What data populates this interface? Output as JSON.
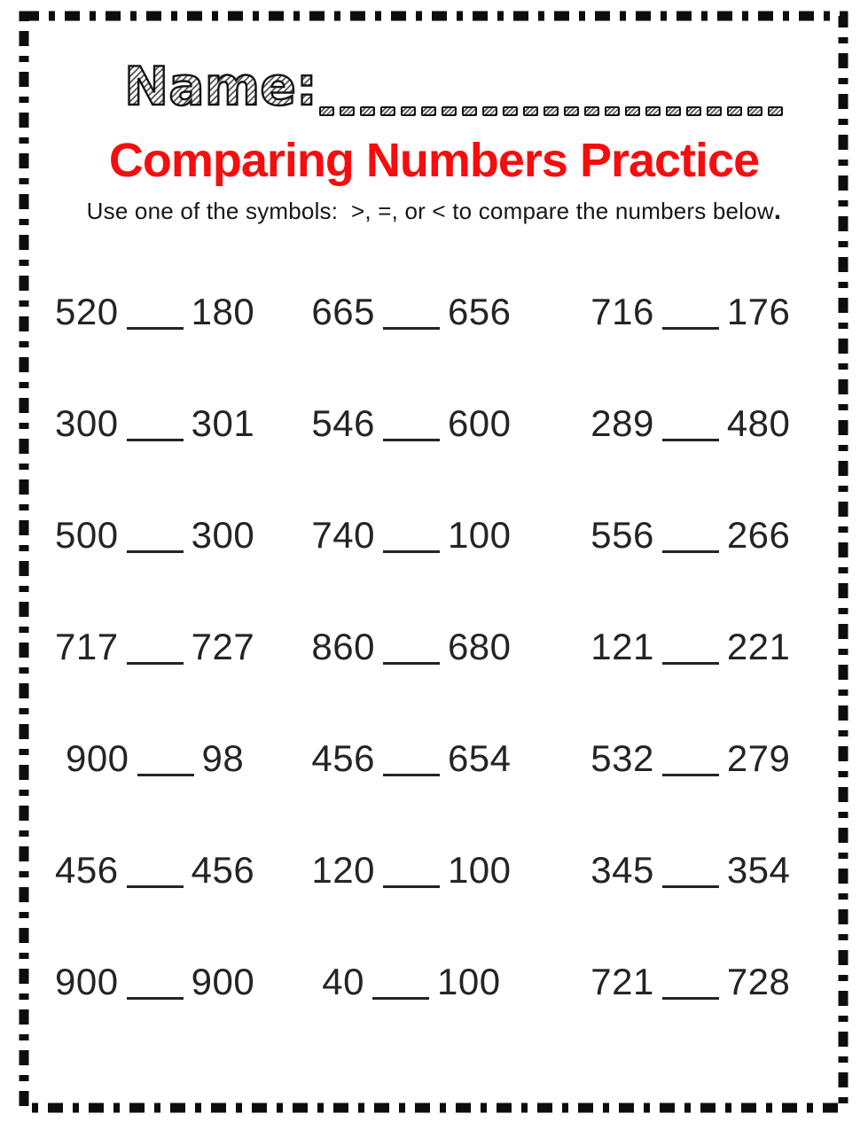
{
  "page": {
    "name_label": "Name:",
    "name_blank_dash_count": 23,
    "title": "Comparing Numbers Practice",
    "title_color": "#f60d0d",
    "instruction": "Use one of the symbols:  >, =, or < to compare the numbers below",
    "instruction_period": ".",
    "border_color": "#0d0d0d"
  },
  "problems": {
    "columns": 3,
    "rows": [
      [
        {
          "left": "520",
          "right": "180"
        },
        {
          "left": "665",
          "right": "656"
        },
        {
          "left": "716",
          "right": "176"
        }
      ],
      [
        {
          "left": "300",
          "right": "301"
        },
        {
          "left": "546",
          "right": "600"
        },
        {
          "left": "289",
          "right": "480"
        }
      ],
      [
        {
          "left": "500",
          "right": "300"
        },
        {
          "left": "740",
          "right": "100"
        },
        {
          "left": "556",
          "right": "266"
        }
      ],
      [
        {
          "left": "717",
          "right": "727"
        },
        {
          "left": "860",
          "right": "680"
        },
        {
          "left": "121",
          "right": "221"
        }
      ],
      [
        {
          "left": "900",
          "right": "98"
        },
        {
          "left": "456",
          "right": "654"
        },
        {
          "left": "532",
          "right": "279"
        }
      ],
      [
        {
          "left": "456",
          "right": "456"
        },
        {
          "left": "120",
          "right": "100"
        },
        {
          "left": "345",
          "right": "354"
        }
      ],
      [
        {
          "left": "900",
          "right": "900"
        },
        {
          "left": "40",
          "right": "100"
        },
        {
          "left": "721",
          "right": "728"
        }
      ]
    ]
  }
}
